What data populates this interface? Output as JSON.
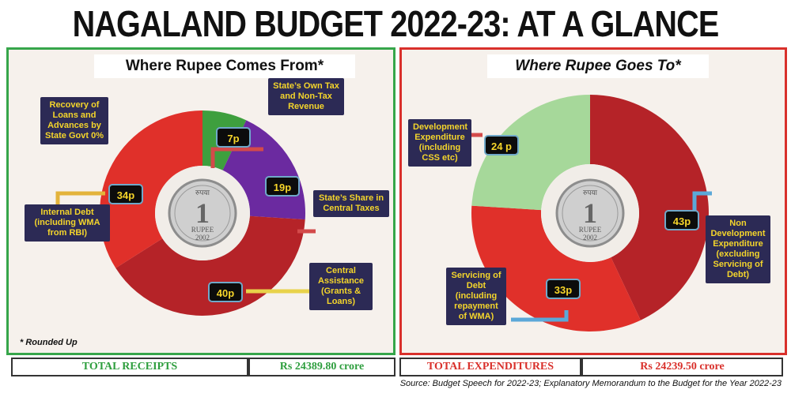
{
  "title": "NAGALAND BUDGET 2022-23: AT A GLANCE",
  "colors": {
    "green": "#3e9f3e",
    "purple": "#6b2aa0",
    "dark_red": "#b52328",
    "red": "#e0302a",
    "light_green": "#a6d89a",
    "label_bg": "#2c2a55",
    "label_text": "#f4d52b"
  },
  "left": {
    "heading": "Where Rupee Comes From*",
    "note": "* Rounded Up",
    "labels": {
      "own_tax": "State’s Own Tax and Non-Tax Revenue",
      "share_taxes": "State’s Share in Central Taxes",
      "central": "Central Assistance (Grants & Loans)",
      "internal_debt": "Internal Debt (including WMA from RBI)",
      "recovery": "Recovery of Loans and Advances by State Govt 0%"
    },
    "values": {
      "own_tax": "7p",
      "share_taxes": "19p",
      "central": "40p",
      "internal_debt": "34p"
    },
    "coin": {
      "top": "रुपया",
      "numeral": "1",
      "word": "RUPEE",
      "year": "2002"
    }
  },
  "right": {
    "heading": "Where Rupee Goes To*",
    "labels": {
      "development": "Development Expenditure (including CSS etc)",
      "non_development": "Non Development Expenditure (excluding Servicing of Debt)",
      "servicing": "Servicing of Debt (including repayment of WMA)"
    },
    "values": {
      "development": "24 p",
      "non_development": "43p",
      "servicing": "33p"
    },
    "coin": {
      "top": "रुपया",
      "numeral": "1",
      "word": "RUPEE",
      "year": "2002"
    }
  },
  "footer": {
    "receipts_label": "TOTAL RECEIPTS",
    "receipts_value": "Rs 24389.80 crore",
    "expenditures_label": "TOTAL EXPENDITURES",
    "expenditures_value": "Rs 24239.50 crore"
  },
  "source": "Source: Budget Speech for 2022-23; Explanatory Memorandum to the Budget for the Year 2022-23",
  "chart_data": [
    {
      "type": "pie",
      "title": "Where Rupee Comes From*",
      "categories": [
        "State’s Own Tax and Non-Tax Revenue",
        "State’s Share in Central Taxes",
        "Central Assistance (Grants & Loans)",
        "Internal Debt (including WMA from RBI)",
        "Recovery of Loans and Advances by State Govt"
      ],
      "values": [
        7,
        19,
        40,
        34,
        0
      ],
      "colors": [
        "#3e9f3e",
        "#6b2aa0",
        "#b52328",
        "#e0302a",
        "#e0302a"
      ]
    },
    {
      "type": "pie",
      "title": "Where Rupee Goes To*",
      "categories": [
        "Non Development Expenditure (excluding Servicing of Debt)",
        "Servicing of Debt (including repayment of WMA)",
        "Development Expenditure (including CSS etc)"
      ],
      "values": [
        43,
        33,
        24
      ],
      "colors": [
        "#b52328",
        "#e0302a",
        "#a6d89a"
      ]
    }
  ]
}
